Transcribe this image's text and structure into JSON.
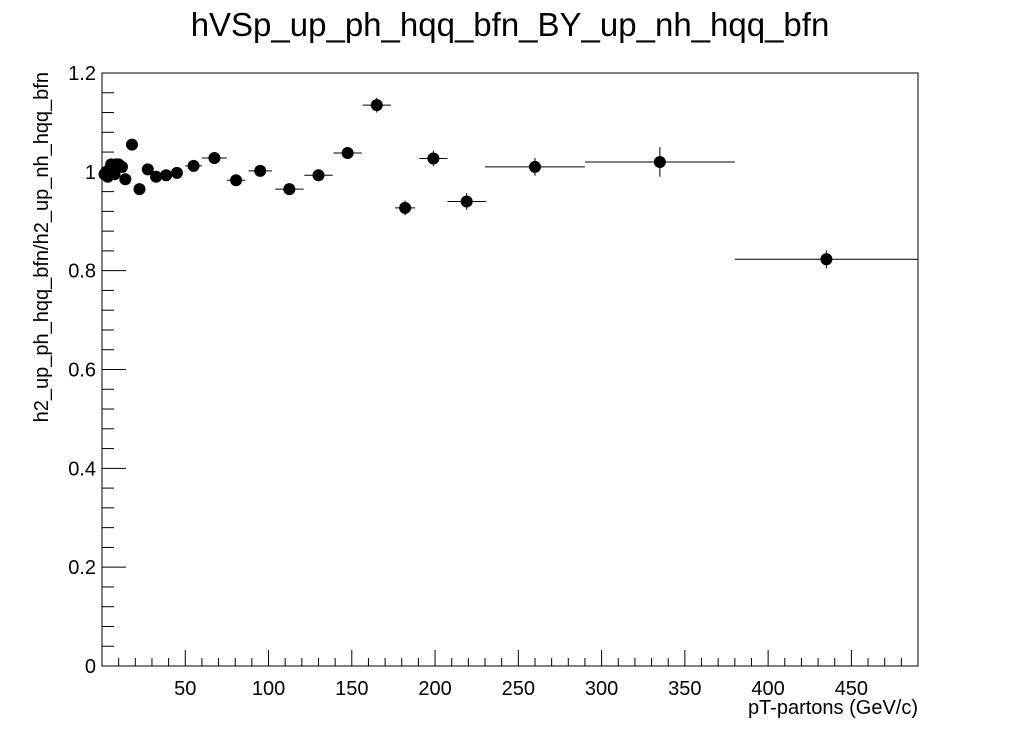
{
  "chart_data": {
    "type": "scatter",
    "title": "hVSp_up_ph_hqq_bfn_BY_up_nh_hqq_bfn",
    "xlabel": "pT-partons (GeV/c)",
    "ylabel": "h2_up_ph_hqq_bfn/h2_up_nh_hqq_bfn",
    "xlim": [
      0,
      490
    ],
    "ylim": [
      0,
      1.2
    ],
    "x_ticks": [
      {
        "value": 50,
        "label": "50"
      },
      {
        "value": 100,
        "label": "100"
      },
      {
        "value": 150,
        "label": "150"
      },
      {
        "value": 200,
        "label": "200"
      },
      {
        "value": 250,
        "label": "250"
      },
      {
        "value": 300,
        "label": "300"
      },
      {
        "value": 350,
        "label": "350"
      },
      {
        "value": 400,
        "label": "400"
      },
      {
        "value": 450,
        "label": "450"
      }
    ],
    "y_ticks": [
      {
        "value": 0,
        "label": "0"
      },
      {
        "value": 0.2,
        "label": "0.2"
      },
      {
        "value": 0.4,
        "label": "0.4"
      },
      {
        "value": 0.6,
        "label": "0.6"
      },
      {
        "value": 0.8,
        "label": "0.8"
      },
      {
        "value": 1.0,
        "label": "1"
      },
      {
        "value": 1.2,
        "label": "1.2"
      }
    ],
    "grid": false,
    "legend": "none",
    "marker_color": "#000000",
    "points": [
      {
        "x": 1.5,
        "y": 0.995,
        "xerr": 1.0,
        "yerr": 0.008
      },
      {
        "x": 2.5,
        "y": 1.0,
        "xerr": 0.5,
        "yerr": 0.006
      },
      {
        "x": 3.5,
        "y": 0.99,
        "xerr": 0.5,
        "yerr": 0.006
      },
      {
        "x": 4.5,
        "y": 1.005,
        "xerr": 0.5,
        "yerr": 0.006
      },
      {
        "x": 5.5,
        "y": 1.015,
        "xerr": 0.5,
        "yerr": 0.006
      },
      {
        "x": 6.5,
        "y": 1.0,
        "xerr": 0.5,
        "yerr": 0.006
      },
      {
        "x": 7.5,
        "y": 0.995,
        "xerr": 0.5,
        "yerr": 0.006
      },
      {
        "x": 8.5,
        "y": 1.015,
        "xerr": 0.5,
        "yerr": 0.006
      },
      {
        "x": 10.0,
        "y": 1.015,
        "xerr": 1.0,
        "yerr": 0.006
      },
      {
        "x": 12.0,
        "y": 1.01,
        "xerr": 1.0,
        "yerr": 0.006
      },
      {
        "x": 14.0,
        "y": 0.985,
        "xerr": 1.0,
        "yerr": 0.006
      },
      {
        "x": 18.0,
        "y": 1.055,
        "xerr": 2.0,
        "yerr": 0.008
      },
      {
        "x": 22.5,
        "y": 0.965,
        "xerr": 2.5,
        "yerr": 0.008
      },
      {
        "x": 27.5,
        "y": 1.005,
        "xerr": 2.5,
        "yerr": 0.008
      },
      {
        "x": 32.5,
        "y": 0.99,
        "xerr": 2.5,
        "yerr": 0.008
      },
      {
        "x": 38.5,
        "y": 0.993,
        "xerr": 3.5,
        "yerr": 0.008
      },
      {
        "x": 45.0,
        "y": 0.998,
        "xerr": 3.0,
        "yerr": 0.008
      },
      {
        "x": 55.0,
        "y": 1.012,
        "xerr": 5.0,
        "yerr": 0.01
      },
      {
        "x": 67.5,
        "y": 1.028,
        "xerr": 7.5,
        "yerr": 0.01
      },
      {
        "x": 80.5,
        "y": 0.983,
        "xerr": 5.5,
        "yerr": 0.01
      },
      {
        "x": 95.0,
        "y": 1.002,
        "xerr": 7.0,
        "yerr": 0.01
      },
      {
        "x": 112.5,
        "y": 0.965,
        "xerr": 8.5,
        "yerr": 0.012
      },
      {
        "x": 130.0,
        "y": 0.993,
        "xerr": 8.5,
        "yerr": 0.012
      },
      {
        "x": 147.5,
        "y": 1.038,
        "xerr": 8.5,
        "yerr": 0.012
      },
      {
        "x": 165.0,
        "y": 1.135,
        "xerr": 8.5,
        "yerr": 0.015
      },
      {
        "x": 182.0,
        "y": 0.927,
        "xerr": 6.0,
        "yerr": 0.015
      },
      {
        "x": 199.0,
        "y": 1.027,
        "xerr": 8.5,
        "yerr": 0.016
      },
      {
        "x": 219.0,
        "y": 0.94,
        "xerr": 11.5,
        "yerr": 0.017
      },
      {
        "x": 260.0,
        "y": 1.01,
        "xerr": 30.0,
        "yerr": 0.018
      },
      {
        "x": 335.0,
        "y": 1.02,
        "xerr": 45.0,
        "yerr": 0.03
      },
      {
        "x": 435.0,
        "y": 0.823,
        "xerr": 55.0,
        "yerr": 0.018
      }
    ]
  }
}
